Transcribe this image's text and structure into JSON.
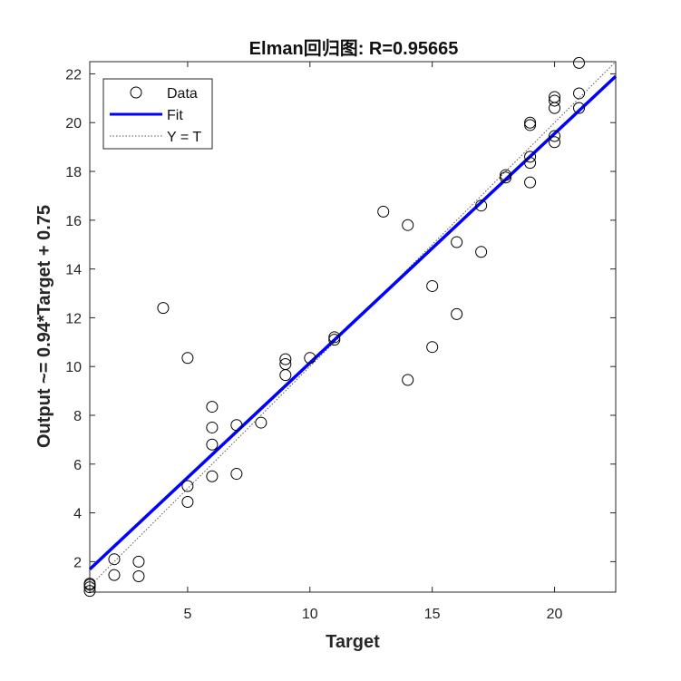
{
  "chart_data": {
    "type": "scatter",
    "title": "Elman回归图: R=0.95665",
    "xlabel": "Target",
    "ylabel": "Output ~= 0.94*Target + 0.75",
    "xlim": [
      1,
      22.5
    ],
    "ylim": [
      0.75,
      22.5
    ],
    "xticks": [
      5,
      10,
      15,
      20
    ],
    "yticks": [
      2,
      4,
      6,
      8,
      10,
      12,
      14,
      16,
      18,
      20,
      22
    ],
    "legend_position": "top-left",
    "grid": false,
    "legend": [
      "Data",
      "Fit",
      "Y = T"
    ],
    "fit": {
      "slope": 0.94,
      "intercept": 0.75,
      "color": "#0000ff"
    },
    "identity_line": {
      "color": "#555555",
      "style": "dotted"
    },
    "data": {
      "marker": "open-circle",
      "x": [
        1,
        1,
        1,
        1,
        2,
        2,
        3,
        3,
        4,
        5,
        5,
        5,
        6,
        6,
        6,
        6,
        7,
        7,
        8,
        9,
        9,
        9,
        10,
        11,
        11,
        13,
        14,
        14,
        15,
        15,
        16,
        16,
        17,
        17,
        18,
        18,
        19,
        19,
        19,
        19,
        19,
        20,
        20,
        20,
        20,
        20,
        21,
        21,
        21
      ],
      "y": [
        1.1,
        0.95,
        0.8,
        1.05,
        2.1,
        1.45,
        2.0,
        1.4,
        12.4,
        10.35,
        5.1,
        4.45,
        8.35,
        7.5,
        6.8,
        5.5,
        7.6,
        5.6,
        7.7,
        10.3,
        10.1,
        9.65,
        10.35,
        11.2,
        11.1,
        16.35,
        15.8,
        9.45,
        13.3,
        10.8,
        15.1,
        12.15,
        16.6,
        14.7,
        17.85,
        17.75,
        20.0,
        19.9,
        18.6,
        18.35,
        17.55,
        21.05,
        20.9,
        20.6,
        19.45,
        19.2,
        22.45,
        21.2,
        20.6
      ]
    }
  }
}
